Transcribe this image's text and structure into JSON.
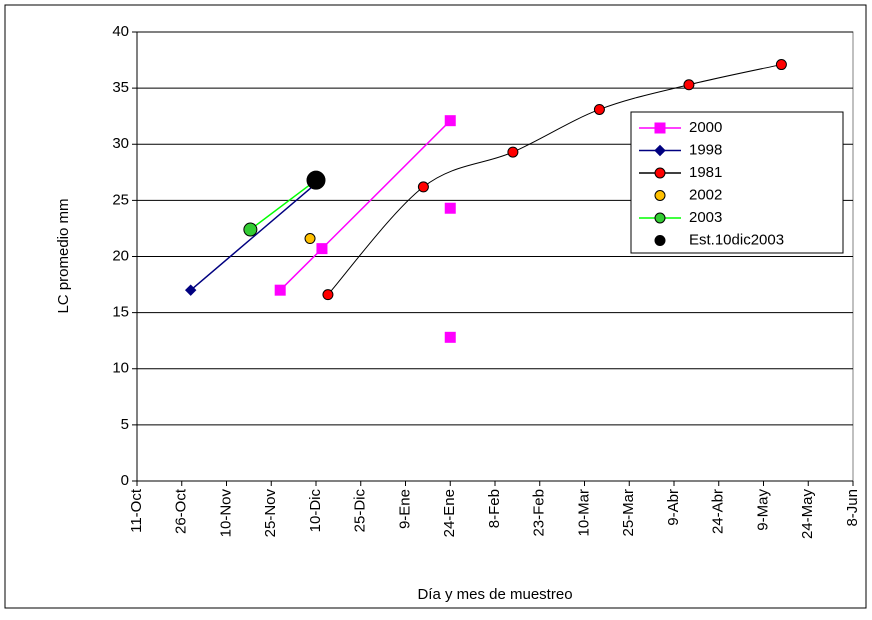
{
  "chart_data": {
    "type": "scatter",
    "x_label": "Día y mes de muestreo",
    "y_label": "LC  promedio mm",
    "xlim": [
      0,
      240
    ],
    "xticks": [
      {
        "value": 0,
        "label": "11-Oct"
      },
      {
        "value": 15,
        "label": "26-Oct"
      },
      {
        "value": 30,
        "label": "10-Nov"
      },
      {
        "value": 45,
        "label": "25-Nov"
      },
      {
        "value": 60,
        "label": "10-Dic"
      },
      {
        "value": 75,
        "label": "25-Dic"
      },
      {
        "value": 90,
        "label": "9-Ene"
      },
      {
        "value": 105,
        "label": "24-Ene"
      },
      {
        "value": 120,
        "label": "8-Feb"
      },
      {
        "value": 135,
        "label": "23-Feb"
      },
      {
        "value": 150,
        "label": "10-Mar"
      },
      {
        "value": 165,
        "label": "25-Mar"
      },
      {
        "value": 180,
        "label": "9-Abr"
      },
      {
        "value": 195,
        "label": "24-Abr"
      },
      {
        "value": 210,
        "label": "9-May"
      },
      {
        "value": 225,
        "label": "24-May"
      },
      {
        "value": 240,
        "label": "8-Jun"
      }
    ],
    "ylim": [
      0,
      40
    ],
    "yticks": [
      0,
      5,
      10,
      15,
      20,
      25,
      30,
      35,
      40
    ],
    "grid": true,
    "legend": "upper-right",
    "series": [
      {
        "name": "2000",
        "color": "#ff00ff",
        "marker": "square",
        "line": true,
        "x": [
          48,
          62,
          105
        ],
        "values": [
          17,
          20.7,
          32.1
        ]
      },
      {
        "name": "1998",
        "color": "#000080",
        "marker": "diamond",
        "line": true,
        "x": [
          18,
          60
        ],
        "values": [
          17,
          26.5
        ]
      },
      {
        "name": "1981",
        "color": "#000000",
        "marker_fill": "#ff0000",
        "marker": "circle",
        "line": true,
        "smooth": true,
        "x": [
          64,
          96,
          126,
          155,
          185,
          216
        ],
        "values": [
          16.6,
          26.2,
          29.3,
          33.1,
          35.3,
          37.1
        ]
      },
      {
        "name": "2002",
        "color": "#ffc000",
        "marker": "circle",
        "line": false,
        "x": [
          58
        ],
        "values": [
          21.6
        ]
      },
      {
        "name": "2003",
        "color": "#00ff00",
        "marker_fill": "#33cc33",
        "marker": "circle-large",
        "line": true,
        "x": [
          38,
          60
        ],
        "values": [
          22.4,
          26.8
        ]
      },
      {
        "name": "Est.10dic2003",
        "color": "#000000",
        "marker": "circle-xl",
        "line": false,
        "x": [
          60
        ],
        "values": [
          26.8
        ]
      },
      {
        "color": "#ff00ff",
        "marker": "square",
        "line": false,
        "x": [
          105,
          105
        ],
        "values": [
          24.3,
          12.8
        ]
      }
    ]
  }
}
